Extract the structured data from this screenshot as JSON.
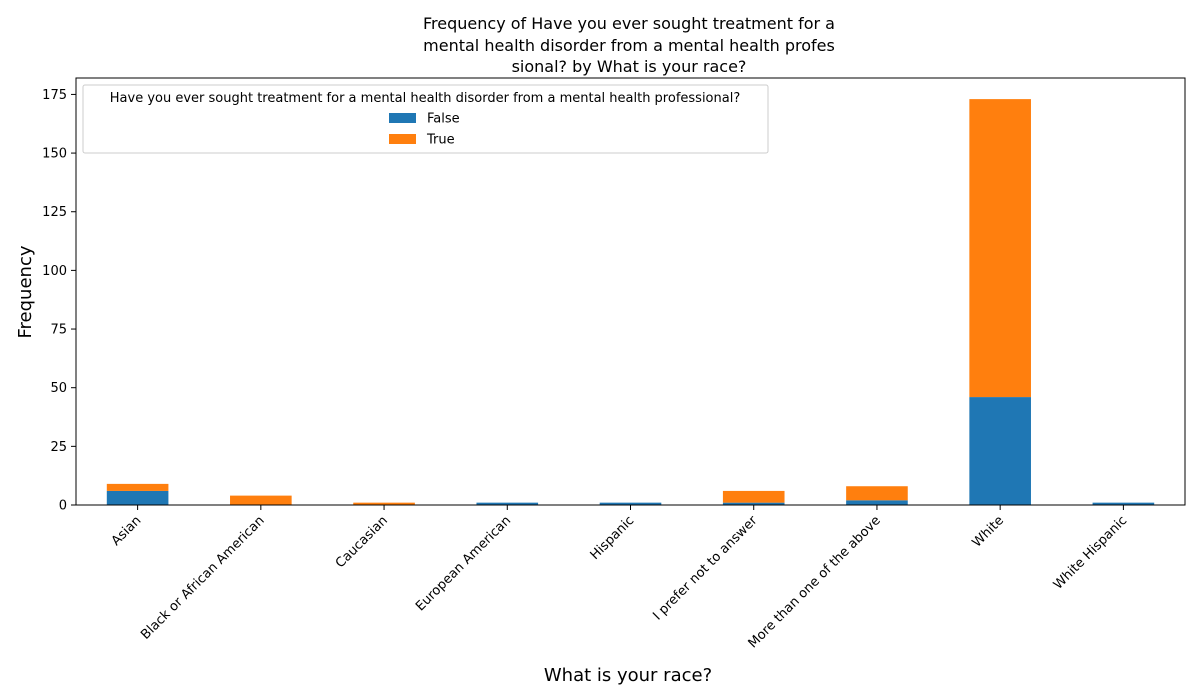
{
  "chart_data": {
    "type": "bar",
    "stacked": true,
    "title": [
      "Frequency of Have you ever sought treatment for a",
      "mental health disorder from a mental health profes",
      "sional? by What is your race?"
    ],
    "xlabel": "What is your race?",
    "ylabel": "Frequency",
    "categories": [
      "Asian",
      "Black or African American",
      "Caucasian",
      "European American",
      "Hispanic",
      "I prefer not to answer",
      "More than one of the above",
      "White",
      "White Hispanic"
    ],
    "series": [
      {
        "name": "False",
        "color": "#1f77b4",
        "values": [
          6,
          0,
          0,
          1,
          1,
          1,
          2,
          46,
          1
        ]
      },
      {
        "name": "True",
        "color": "#ff7f0e",
        "values": [
          3,
          4,
          1,
          0,
          0,
          5,
          6,
          127,
          0
        ]
      }
    ],
    "ylim": [
      0,
      182
    ],
    "yticks": [
      0,
      25,
      50,
      75,
      100,
      125,
      150,
      175
    ],
    "legend": {
      "title": "Have you ever sought treatment for a mental health disorder from a mental health professional?",
      "position": "top-left"
    },
    "grid": false
  }
}
